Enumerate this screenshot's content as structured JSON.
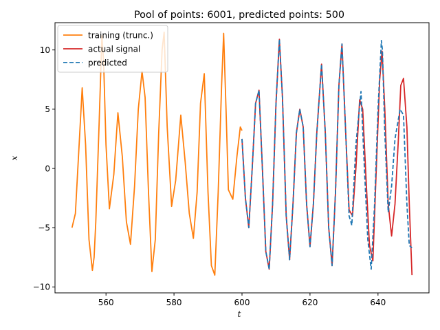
{
  "chart_data": {
    "type": "line",
    "title": "Pool of points: 6001, predicted points: 500",
    "xlabel": "t",
    "ylabel": "x",
    "xlim": [
      545,
      655
    ],
    "ylim": [
      -10.5,
      12.3
    ],
    "xticks": [
      560,
      580,
      600,
      620,
      640
    ],
    "yticks": [
      -10,
      -5,
      0,
      5,
      10
    ],
    "grid": false,
    "legend_position": "upper-left",
    "series": [
      {
        "name": "training (trunc.)",
        "color": "#ff7f0e",
        "style": "solid",
        "x": [
          550,
          551,
          552,
          553,
          554,
          555,
          556,
          556.5,
          557,
          558,
          558.8,
          559.3,
          560,
          561,
          562.3,
          563.5,
          564.8,
          566,
          567.2,
          568.4,
          569.5,
          570.6,
          571.5,
          572.5,
          573.5,
          574.5,
          575.5,
          576.5,
          577.1,
          578,
          579.3,
          580.5,
          582,
          583.3,
          584.5,
          585.7,
          586.8,
          587.8,
          588.9,
          590,
          591,
          592,
          593,
          594,
          594.6,
          595.3,
          596,
          597.3,
          598.5,
          599.5,
          600
        ],
        "y": [
          -5.0,
          -3.8,
          1.5,
          6.8,
          2.0,
          -6.0,
          -8.6,
          -7.5,
          -4.5,
          4.0,
          11.2,
          9.0,
          2.0,
          -3.4,
          -0.5,
          4.7,
          1.0,
          -4.5,
          -6.4,
          -1.5,
          5.0,
          8.2,
          6.0,
          -2.0,
          -8.7,
          -6.0,
          3.0,
          10.0,
          11.5,
          3.5,
          -3.2,
          -1.0,
          4.5,
          0.5,
          -3.8,
          -5.9,
          -2.0,
          5.5,
          8.0,
          -2.0,
          -8.2,
          -9.0,
          -2.0,
          7.0,
          11.4,
          5.0,
          -1.8,
          -2.6,
          1.0,
          3.5,
          3.2
        ]
      },
      {
        "name": "actual signal",
        "color": "#d62728",
        "style": "solid",
        "x": [
          600,
          601,
          602,
          603,
          604,
          605,
          606,
          607,
          608,
          609,
          610,
          611,
          611.9,
          613,
          614,
          615,
          616,
          617,
          618,
          619,
          620,
          621,
          622,
          623.4,
          624.5,
          625.5,
          626.5,
          627.5,
          628.5,
          629.4,
          630.5,
          631.5,
          632.5,
          633.5,
          634.6,
          635.5,
          636.5,
          637.5,
          638.5,
          639.5,
          640.5,
          641.2,
          642,
          643,
          644,
          645,
          646,
          646.7,
          647.5,
          648.5,
          649.2,
          650
        ],
        "y": [
          2.5,
          -2.5,
          -5.0,
          0.0,
          5.5,
          6.6,
          0.0,
          -7.0,
          -8.5,
          -3.0,
          5.5,
          10.9,
          6.0,
          -4.0,
          -7.7,
          -3.0,
          3.0,
          5.0,
          3.5,
          -3.0,
          -6.6,
          -3.0,
          3.0,
          8.8,
          3.0,
          -5.0,
          -8.2,
          -2.0,
          7.0,
          10.5,
          3.0,
          -3.5,
          -4.0,
          0.0,
          5.8,
          5.0,
          -1.0,
          -6.5,
          -7.8,
          0.0,
          7.5,
          9.9,
          5.0,
          -3.0,
          -5.7,
          -3.0,
          2.5,
          7.0,
          7.6,
          3.5,
          -3.0,
          -9.0
        ]
      },
      {
        "name": "predicted",
        "color": "#1f77b4",
        "style": "dashed",
        "x": [
          600,
          601,
          602,
          603,
          604,
          605,
          606,
          607,
          608,
          609,
          610,
          611,
          611.9,
          613,
          614,
          615,
          616,
          617,
          618,
          619,
          620,
          621,
          622,
          623.4,
          624.5,
          625.5,
          626.5,
          627.5,
          628.5,
          629.4,
          630.5,
          631.5,
          632.3,
          633.5,
          635,
          636,
          637,
          638,
          639,
          640,
          641,
          641.3,
          642,
          643,
          644,
          645,
          646.5,
          647.5,
          648.5,
          649.2,
          650
        ],
        "y": [
          2.5,
          -2.5,
          -5.0,
          0.0,
          5.5,
          6.6,
          0.0,
          -7.0,
          -8.5,
          -3.0,
          5.5,
          10.9,
          6.0,
          -4.0,
          -7.7,
          -3.0,
          3.0,
          5.0,
          3.5,
          -3.0,
          -6.6,
          -3.0,
          3.0,
          8.8,
          3.0,
          -5.0,
          -8.2,
          -2.0,
          7.0,
          10.5,
          3.0,
          -4.0,
          -4.8,
          2.0,
          6.5,
          0.0,
          -6.0,
          -8.5,
          -3.0,
          5.0,
          10.8,
          10.0,
          3.0,
          -3.7,
          -1.5,
          2.5,
          5.0,
          4.5,
          -3.0,
          -6.5,
          -6.7
        ]
      }
    ]
  }
}
